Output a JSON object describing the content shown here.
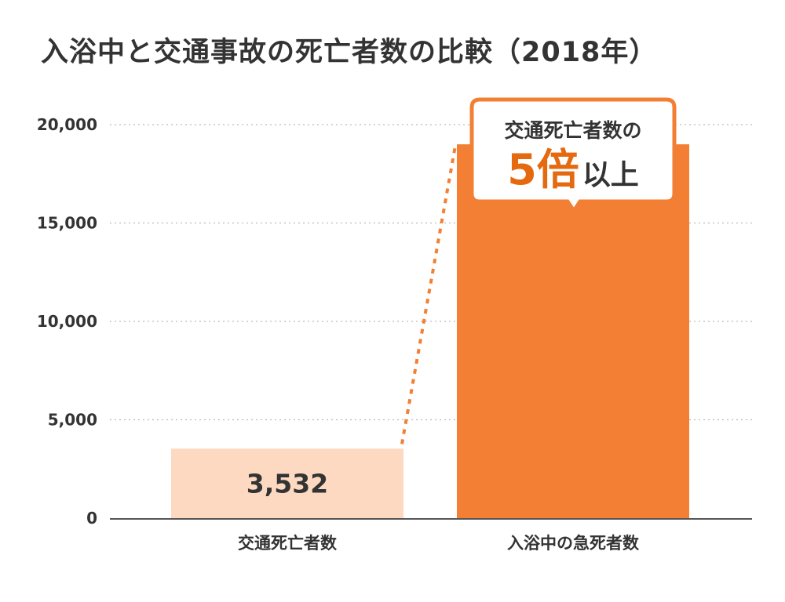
{
  "colors": {
    "accent": "#f27f33",
    "light_bar": "#fdd9c1",
    "callout_accent": "#e5690f",
    "text": "#333333",
    "grid": "#bbbbbb",
    "axis": "#555555"
  },
  "chart_data": {
    "type": "bar",
    "title": "入浴中と交通事故の死亡者数の比較（2018年）",
    "categories": [
      "交通死亡者数",
      "入浴中の急死者数"
    ],
    "values": [
      3532,
      19000
    ],
    "value_labels": [
      "3,532",
      ""
    ],
    "ylim": [
      0,
      20000
    ],
    "yticks": [
      0,
      5000,
      10000,
      15000,
      20000
    ],
    "ytick_labels": [
      "0",
      "5,000",
      "10,000",
      "15,000",
      "20,000"
    ],
    "grid": true,
    "grid_style": "dotted",
    "xlabel": "",
    "ylabel": "",
    "bar_colors": [
      "#fdd9c1",
      "#f27f33"
    ],
    "annotation": {
      "line1": "交通死亡者数の",
      "big": "5倍",
      "rest": "以上"
    }
  }
}
